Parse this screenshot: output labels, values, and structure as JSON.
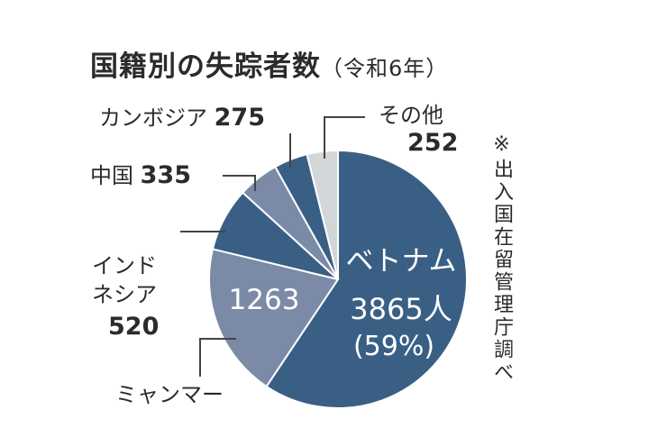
{
  "chart_data": {
    "type": "pie",
    "title": "国籍別の失踪者数",
    "subtitle": "（令和6年）",
    "note": "※出入国在留管理庁調べ",
    "unit": "人",
    "slices": [
      {
        "label": "ベトナム",
        "value": 3865,
        "display": "3865人",
        "percent_label": "(59%)",
        "color": "#3a5f85"
      },
      {
        "label": "ミャンマー",
        "value": 1263,
        "display": "1263",
        "color": "#7b8aa6"
      },
      {
        "label": "インドネシア",
        "label_lines": [
          "インド",
          "ネシア"
        ],
        "value": 520,
        "display": "520",
        "color": "#3a5f85"
      },
      {
        "label": "中国",
        "value": 335,
        "display": "335",
        "color": "#7b8aa6"
      },
      {
        "label": "カンボジア",
        "value": 275,
        "display": "275",
        "color": "#3a5f85"
      },
      {
        "label": "その他",
        "value": 252,
        "display": "252",
        "color": "#d3d6d9"
      }
    ]
  }
}
